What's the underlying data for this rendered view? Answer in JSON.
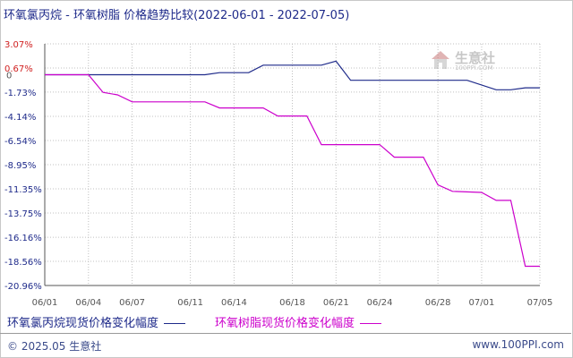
{
  "title": "环氧氯丙烷 - 环氧树脂 价格趋势比较(2022-06-01 - 2022-07-05)",
  "legend": [
    {
      "label": "环氧氯丙烷现货价格变化幅度",
      "color": "#1e2a8a"
    },
    {
      "label": "环氧树脂现货价格变化幅度",
      "color": "#cc00cc"
    }
  ],
  "footer": {
    "copyright": "© 2025.05 生意社",
    "url": "www.100PPI.com"
  },
  "watermark": {
    "brand": "生意社",
    "url": "100PPI.COM"
  },
  "colors": {
    "grid": "#c0c0c0",
    "axis": "#555555",
    "tick_positive": "#d02020",
    "tick_negative": "#1e2a8a",
    "tick_zero": "#555555"
  },
  "chart_data": {
    "type": "line",
    "x_ticks": [
      "06/01",
      "06/04",
      "06/07",
      "06/11",
      "06/14",
      "06/18",
      "06/21",
      "06/24",
      "06/28",
      "07/01",
      "07/05"
    ],
    "y_ticks": [
      "3.07%",
      "0.67%",
      "0",
      "-1.73%",
      "-4.14%",
      "-6.54%",
      "-8.95%",
      "-11.35%",
      "-13.75%",
      "-16.16%",
      "-18.56%",
      "-20.96%"
    ],
    "ylim": [
      -20.96,
      3.07
    ],
    "grid": true,
    "legend_position": "bottom",
    "series": [
      {
        "name": "环氧氯丙烷现货价格变化幅度",
        "color": "#1e2a8a",
        "points": [
          [
            "06/01",
            0
          ],
          [
            "06/04",
            0
          ],
          [
            "06/12",
            0
          ],
          [
            "06/13",
            0.2
          ],
          [
            "06/15",
            0.2
          ],
          [
            "06/16",
            0.95
          ],
          [
            "06/20",
            0.95
          ],
          [
            "06/21",
            1.35
          ],
          [
            "06/22",
            -0.55
          ],
          [
            "06/24",
            -0.55
          ],
          [
            "06/29",
            -0.55
          ],
          [
            "06/30",
            -0.55
          ],
          [
            "07/02",
            -1.5
          ],
          [
            "07/03",
            -1.5
          ],
          [
            "07/04",
            -1.3
          ],
          [
            "07/05",
            -1.3
          ]
        ]
      },
      {
        "name": "环氧树脂现货价格变化幅度",
        "color": "#cc00cc",
        "points": [
          [
            "06/01",
            0
          ],
          [
            "06/04",
            0
          ],
          [
            "06/05",
            -1.75
          ],
          [
            "06/06",
            -2.0
          ],
          [
            "06/07",
            -2.7
          ],
          [
            "06/08",
            -2.7
          ],
          [
            "06/11",
            -2.7
          ],
          [
            "06/12",
            -2.7
          ],
          [
            "06/13",
            -3.3
          ],
          [
            "06/15",
            -3.3
          ],
          [
            "06/16",
            -3.3
          ],
          [
            "06/17",
            -4.1
          ],
          [
            "06/19",
            -4.1
          ],
          [
            "06/20",
            -6.95
          ],
          [
            "06/24",
            -6.95
          ],
          [
            "06/25",
            -8.2
          ],
          [
            "06/27",
            -8.2
          ],
          [
            "06/28",
            -10.95
          ],
          [
            "06/29",
            -11.6
          ],
          [
            "07/01",
            -11.7
          ],
          [
            "07/02",
            -12.5
          ],
          [
            "07/03",
            -12.5
          ],
          [
            "07/04",
            -19.05
          ],
          [
            "07/05",
            -19.05
          ]
        ]
      }
    ]
  }
}
